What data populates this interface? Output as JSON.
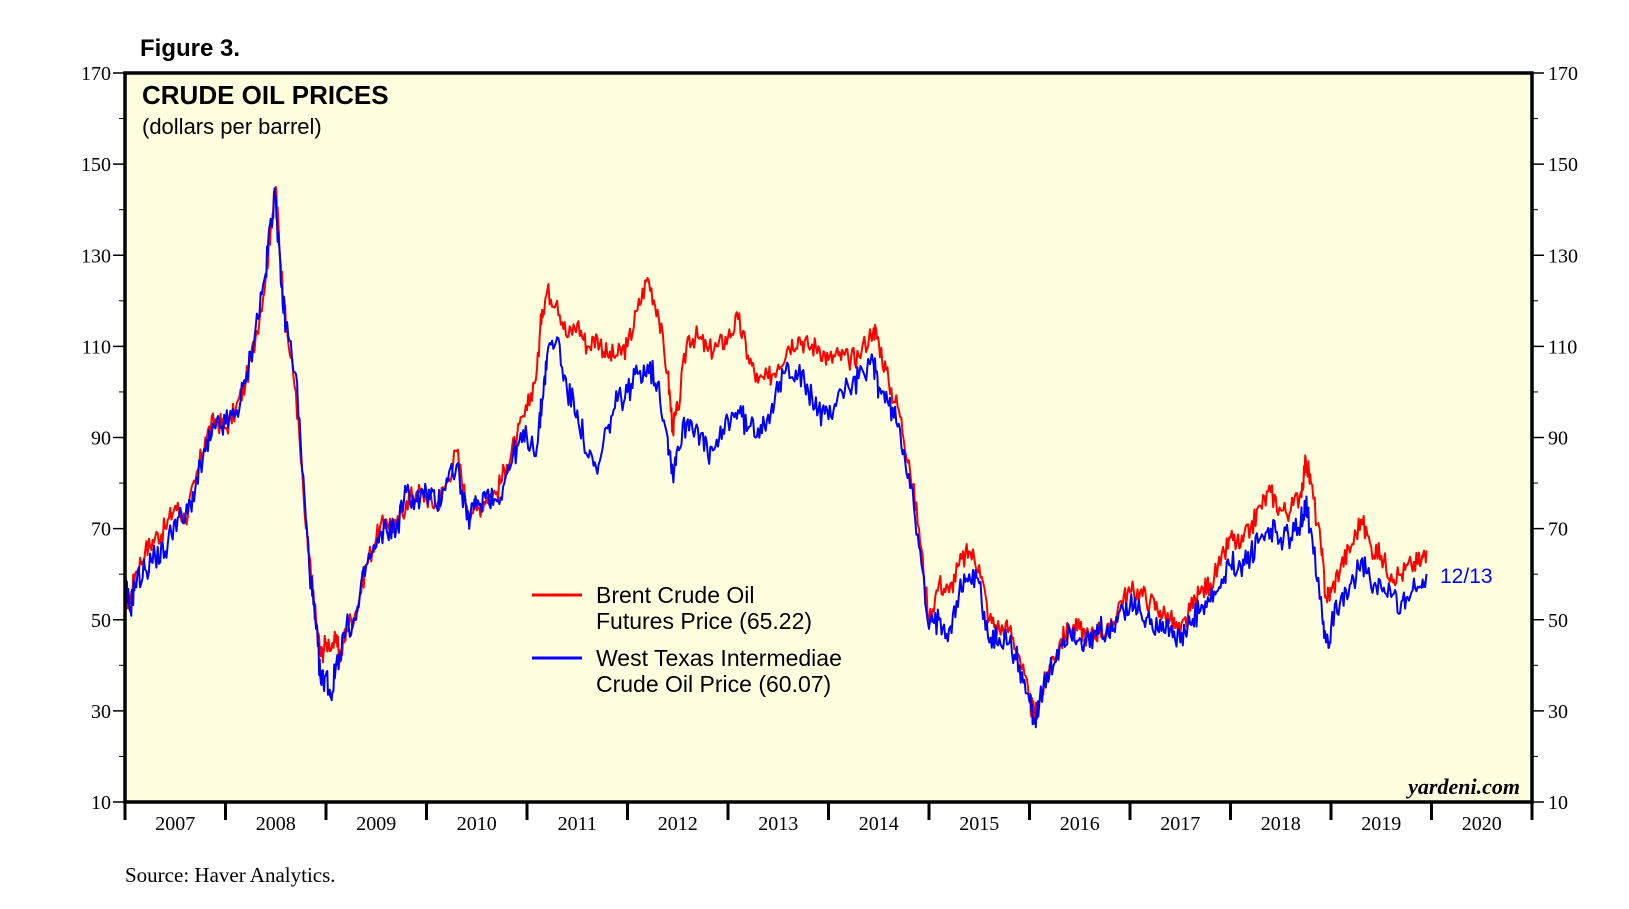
{
  "figure_label": "Figure 3.",
  "source": "Source: Haver Analytics.",
  "watermark": "yardeni.com",
  "colors": {
    "plot_bg": "#ffffe0",
    "frame": "#000000",
    "brent": "#ff0000",
    "wti": "#0000ff",
    "date_label": "#0000ff"
  },
  "chart_data": {
    "type": "line",
    "title": "CRUDE OIL PRICES",
    "subtitle": "(dollars per barrel)",
    "xlabel": "",
    "ylabel": "",
    "xlim": [
      2007,
      2021
    ],
    "ylim": [
      10,
      170
    ],
    "y_ticks": [
      10,
      30,
      50,
      70,
      90,
      110,
      130,
      150,
      170
    ],
    "x_tick_labels": [
      "2007",
      "2008",
      "2009",
      "2010",
      "2011",
      "2012",
      "2013",
      "2014",
      "2015",
      "2016",
      "2017",
      "2018",
      "2019",
      "2020"
    ],
    "last_date_label": "12/13",
    "legend": [
      {
        "series": "brent",
        "line1": "Brent Crude Oil",
        "line2": "Futures Price (65.22)"
      },
      {
        "series": "wti",
        "line1": "West Texas Intermediae",
        "line2": "Crude Oil Price (60.07)"
      }
    ],
    "series": [
      {
        "name": "Brent Crude Oil Futures Price",
        "key": "brent",
        "points": [
          [
            2007.0,
            55
          ],
          [
            2007.05,
            54
          ],
          [
            2007.1,
            60
          ],
          [
            2007.2,
            65
          ],
          [
            2007.3,
            68
          ],
          [
            2007.4,
            70
          ],
          [
            2007.5,
            75
          ],
          [
            2007.6,
            72
          ],
          [
            2007.7,
            80
          ],
          [
            2007.8,
            90
          ],
          [
            2007.9,
            94
          ],
          [
            2008.0,
            92
          ],
          [
            2008.1,
            96
          ],
          [
            2008.2,
            102
          ],
          [
            2008.3,
            112
          ],
          [
            2008.4,
            125
          ],
          [
            2008.45,
            136
          ],
          [
            2008.5,
            145
          ],
          [
            2008.55,
            128
          ],
          [
            2008.6,
            115
          ],
          [
            2008.7,
            100
          ],
          [
            2008.8,
            70
          ],
          [
            2008.85,
            60
          ],
          [
            2008.9,
            50
          ],
          [
            2008.95,
            42
          ],
          [
            2009.0,
            45
          ],
          [
            2009.1,
            45
          ],
          [
            2009.15,
            42
          ],
          [
            2009.2,
            48
          ],
          [
            2009.3,
            52
          ],
          [
            2009.4,
            62
          ],
          [
            2009.5,
            68
          ],
          [
            2009.6,
            72
          ],
          [
            2009.7,
            70
          ],
          [
            2009.8,
            76
          ],
          [
            2009.9,
            78
          ],
          [
            2010.0,
            77
          ],
          [
            2010.1,
            75
          ],
          [
            2010.2,
            80
          ],
          [
            2010.3,
            87
          ],
          [
            2010.4,
            75
          ],
          [
            2010.5,
            74
          ],
          [
            2010.6,
            77
          ],
          [
            2010.7,
            78
          ],
          [
            2010.8,
            84
          ],
          [
            2010.9,
            90
          ],
          [
            2011.0,
            96
          ],
          [
            2011.1,
            105
          ],
          [
            2011.15,
            118
          ],
          [
            2011.2,
            122
          ],
          [
            2011.3,
            120
          ],
          [
            2011.4,
            112
          ],
          [
            2011.5,
            115
          ],
          [
            2011.6,
            110
          ],
          [
            2011.7,
            112
          ],
          [
            2011.8,
            108
          ],
          [
            2011.9,
            108
          ],
          [
            2012.0,
            110
          ],
          [
            2012.1,
            118
          ],
          [
            2012.2,
            125
          ],
          [
            2012.3,
            118
          ],
          [
            2012.4,
            104
          ],
          [
            2012.45,
            92
          ],
          [
            2012.5,
            96
          ],
          [
            2012.6,
            112
          ],
          [
            2012.7,
            112
          ],
          [
            2012.8,
            109
          ],
          [
            2012.9,
            110
          ],
          [
            2013.0,
            112
          ],
          [
            2013.1,
            116
          ],
          [
            2013.2,
            108
          ],
          [
            2013.3,
            102
          ],
          [
            2013.4,
            103
          ],
          [
            2013.5,
            106
          ],
          [
            2013.6,
            110
          ],
          [
            2013.7,
            112
          ],
          [
            2013.8,
            110
          ],
          [
            2013.9,
            110
          ],
          [
            2014.0,
            107
          ],
          [
            2014.1,
            108
          ],
          [
            2014.2,
            107
          ],
          [
            2014.3,
            108
          ],
          [
            2014.45,
            114
          ],
          [
            2014.5,
            111
          ],
          [
            2014.6,
            102
          ],
          [
            2014.7,
            96
          ],
          [
            2014.8,
            85
          ],
          [
            2014.9,
            70
          ],
          [
            2015.0,
            50
          ],
          [
            2015.1,
            58
          ],
          [
            2015.2,
            56
          ],
          [
            2015.3,
            62
          ],
          [
            2015.4,
            65
          ],
          [
            2015.5,
            62
          ],
          [
            2015.6,
            50
          ],
          [
            2015.7,
            48
          ],
          [
            2015.8,
            48
          ],
          [
            2015.9,
            42
          ],
          [
            2016.0,
            32
          ],
          [
            2016.05,
            29
          ],
          [
            2016.1,
            32
          ],
          [
            2016.2,
            40
          ],
          [
            2016.3,
            45
          ],
          [
            2016.4,
            48
          ],
          [
            2016.5,
            48
          ],
          [
            2016.6,
            46
          ],
          [
            2016.7,
            48
          ],
          [
            2016.8,
            47
          ],
          [
            2016.9,
            54
          ],
          [
            2017.0,
            56
          ],
          [
            2017.1,
            56
          ],
          [
            2017.2,
            54
          ],
          [
            2017.3,
            52
          ],
          [
            2017.4,
            50
          ],
          [
            2017.5,
            47
          ],
          [
            2017.6,
            52
          ],
          [
            2017.7,
            56
          ],
          [
            2017.8,
            58
          ],
          [
            2017.9,
            62
          ],
          [
            2018.0,
            68
          ],
          [
            2018.1,
            66
          ],
          [
            2018.2,
            70
          ],
          [
            2018.3,
            75
          ],
          [
            2018.4,
            78
          ],
          [
            2018.5,
            74
          ],
          [
            2018.6,
            74
          ],
          [
            2018.7,
            78
          ],
          [
            2018.75,
            85
          ],
          [
            2018.8,
            80
          ],
          [
            2018.9,
            66
          ],
          [
            2018.95,
            55
          ],
          [
            2019.0,
            56
          ],
          [
            2019.1,
            62
          ],
          [
            2019.2,
            66
          ],
          [
            2019.3,
            72
          ],
          [
            2019.4,
            66
          ],
          [
            2019.5,
            64
          ],
          [
            2019.6,
            60
          ],
          [
            2019.7,
            60
          ],
          [
            2019.8,
            62
          ],
          [
            2019.9,
            63
          ],
          [
            2019.95,
            65.22
          ]
        ]
      },
      {
        "name": "West Texas Intermediae Crude Oil Price",
        "key": "wti",
        "points": [
          [
            2007.0,
            58
          ],
          [
            2007.05,
            52
          ],
          [
            2007.1,
            58
          ],
          [
            2007.2,
            61
          ],
          [
            2007.3,
            64
          ],
          [
            2007.4,
            65
          ],
          [
            2007.5,
            72
          ],
          [
            2007.6,
            72
          ],
          [
            2007.7,
            79
          ],
          [
            2007.8,
            87
          ],
          [
            2007.9,
            92
          ],
          [
            2008.0,
            93
          ],
          [
            2008.1,
            95
          ],
          [
            2008.2,
            102
          ],
          [
            2008.3,
            114
          ],
          [
            2008.4,
            126
          ],
          [
            2008.45,
            138
          ],
          [
            2008.5,
            143
          ],
          [
            2008.55,
            124
          ],
          [
            2008.6,
            115
          ],
          [
            2008.7,
            104
          ],
          [
            2008.8,
            72
          ],
          [
            2008.85,
            58
          ],
          [
            2008.9,
            48
          ],
          [
            2008.95,
            36
          ],
          [
            2009.0,
            38
          ],
          [
            2009.05,
            33
          ],
          [
            2009.1,
            40
          ],
          [
            2009.2,
            48
          ],
          [
            2009.3,
            50
          ],
          [
            2009.4,
            62
          ],
          [
            2009.5,
            66
          ],
          [
            2009.6,
            70
          ],
          [
            2009.7,
            70
          ],
          [
            2009.8,
            78
          ],
          [
            2009.9,
            76
          ],
          [
            2010.0,
            78
          ],
          [
            2010.1,
            75
          ],
          [
            2010.2,
            81
          ],
          [
            2010.3,
            84
          ],
          [
            2010.4,
            72
          ],
          [
            2010.5,
            75
          ],
          [
            2010.6,
            78
          ],
          [
            2010.7,
            76
          ],
          [
            2010.8,
            82
          ],
          [
            2010.9,
            88
          ],
          [
            2011.0,
            90
          ],
          [
            2011.1,
            88
          ],
          [
            2011.15,
            98
          ],
          [
            2011.2,
            108
          ],
          [
            2011.3,
            112
          ],
          [
            2011.4,
            100
          ],
          [
            2011.5,
            96
          ],
          [
            2011.6,
            86
          ],
          [
            2011.7,
            82
          ],
          [
            2011.8,
            92
          ],
          [
            2011.9,
            98
          ],
          [
            2012.0,
            100
          ],
          [
            2012.1,
            104
          ],
          [
            2012.2,
            106
          ],
          [
            2012.3,
            102
          ],
          [
            2012.4,
            90
          ],
          [
            2012.45,
            82
          ],
          [
            2012.5,
            88
          ],
          [
            2012.6,
            94
          ],
          [
            2012.7,
            92
          ],
          [
            2012.8,
            86
          ],
          [
            2012.9,
            88
          ],
          [
            2013.0,
            94
          ],
          [
            2013.1,
            96
          ],
          [
            2013.2,
            92
          ],
          [
            2013.3,
            92
          ],
          [
            2013.4,
            95
          ],
          [
            2013.5,
            100
          ],
          [
            2013.6,
            106
          ],
          [
            2013.7,
            104
          ],
          [
            2013.8,
            100
          ],
          [
            2013.9,
            96
          ],
          [
            2014.0,
            94
          ],
          [
            2014.1,
            100
          ],
          [
            2014.2,
            101
          ],
          [
            2014.3,
            103
          ],
          [
            2014.45,
            106
          ],
          [
            2014.5,
            101
          ],
          [
            2014.6,
            97
          ],
          [
            2014.7,
            93
          ],
          [
            2014.8,
            82
          ],
          [
            2014.9,
            66
          ],
          [
            2015.0,
            48
          ],
          [
            2015.1,
            50
          ],
          [
            2015.2,
            48
          ],
          [
            2015.3,
            56
          ],
          [
            2015.4,
            60
          ],
          [
            2015.5,
            58
          ],
          [
            2015.6,
            45
          ],
          [
            2015.7,
            46
          ],
          [
            2015.8,
            45
          ],
          [
            2015.9,
            40
          ],
          [
            2016.0,
            32
          ],
          [
            2016.05,
            28
          ],
          [
            2016.1,
            32
          ],
          [
            2016.2,
            38
          ],
          [
            2016.3,
            44
          ],
          [
            2016.4,
            48
          ],
          [
            2016.5,
            46
          ],
          [
            2016.6,
            44
          ],
          [
            2016.7,
            48
          ],
          [
            2016.8,
            46
          ],
          [
            2016.9,
            52
          ],
          [
            2017.0,
            53
          ],
          [
            2017.1,
            52
          ],
          [
            2017.2,
            49
          ],
          [
            2017.3,
            50
          ],
          [
            2017.4,
            48
          ],
          [
            2017.5,
            45
          ],
          [
            2017.6,
            49
          ],
          [
            2017.7,
            52
          ],
          [
            2017.8,
            54
          ],
          [
            2017.9,
            57
          ],
          [
            2018.0,
            62
          ],
          [
            2018.1,
            62
          ],
          [
            2018.2,
            64
          ],
          [
            2018.3,
            68
          ],
          [
            2018.4,
            70
          ],
          [
            2018.5,
            68
          ],
          [
            2018.6,
            68
          ],
          [
            2018.7,
            72
          ],
          [
            2018.75,
            75
          ],
          [
            2018.8,
            70
          ],
          [
            2018.9,
            55
          ],
          [
            2018.95,
            45
          ],
          [
            2019.0,
            48
          ],
          [
            2019.1,
            55
          ],
          [
            2019.2,
            58
          ],
          [
            2019.3,
            63
          ],
          [
            2019.4,
            57
          ],
          [
            2019.5,
            57
          ],
          [
            2019.6,
            55
          ],
          [
            2019.7,
            54
          ],
          [
            2019.8,
            56
          ],
          [
            2019.9,
            57
          ],
          [
            2019.95,
            60.07
          ]
        ]
      }
    ]
  }
}
